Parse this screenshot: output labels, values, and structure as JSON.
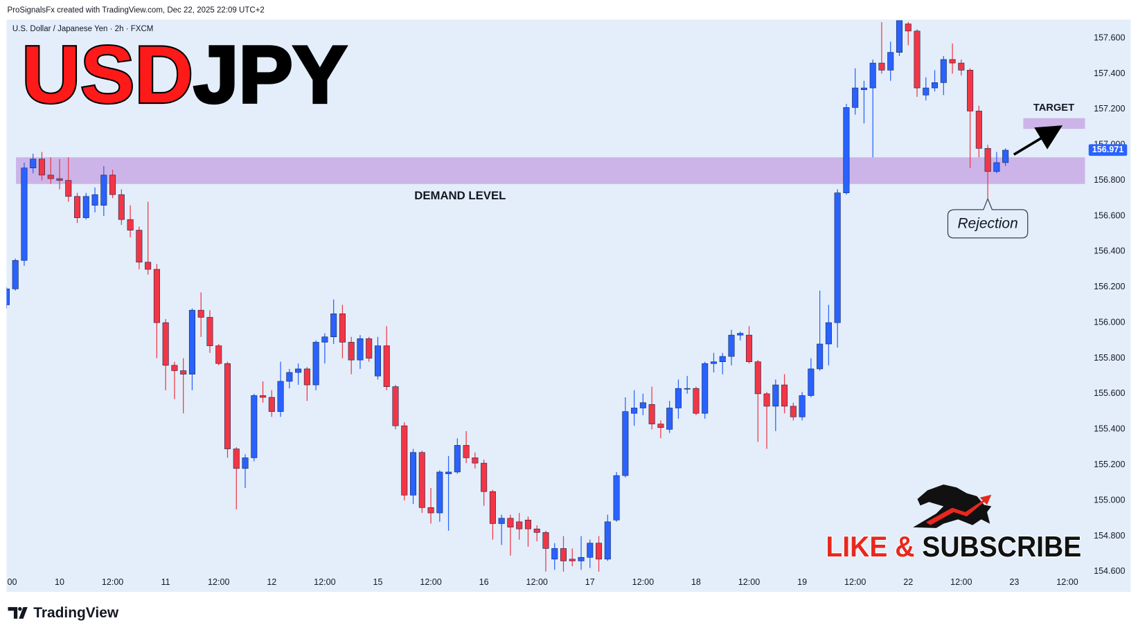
{
  "chart_data": {
    "type": "candlestick",
    "credit": "ProSignalsFx created with TradingView.com, Dec 22, 2025 22:09 UTC+2",
    "subtitle": "U.S. Dollar / Japanese Yen · 2h · FXCM",
    "title_parts": [
      "USD",
      "JPY"
    ],
    "up_color": "#2962ff",
    "down_color": "#f23645",
    "zone_color": "#c8a9e4",
    "grid": false,
    "xlim": [
      -6,
      116
    ],
    "ylim": [
      154.49,
      157.7
    ],
    "xticks": [
      {
        "value": -6,
        "label": "00"
      },
      {
        "value": 0,
        "label": "10"
      },
      {
        "value": 6,
        "label": "12:00"
      },
      {
        "value": 12,
        "label": "11"
      },
      {
        "value": 18,
        "label": "12:00"
      },
      {
        "value": 24,
        "label": "12"
      },
      {
        "value": 30,
        "label": "12:00"
      },
      {
        "value": 36,
        "label": "15"
      },
      {
        "value": 42,
        "label": "12:00"
      },
      {
        "value": 48,
        "label": "16"
      },
      {
        "value": 54,
        "label": "12:00"
      },
      {
        "value": 60,
        "label": "17"
      },
      {
        "value": 66,
        "label": "12:00"
      },
      {
        "value": 72,
        "label": "18"
      },
      {
        "value": 78,
        "label": "12:00"
      },
      {
        "value": 84,
        "label": "19"
      },
      {
        "value": 90,
        "label": "12:00"
      },
      {
        "value": 96,
        "label": "22"
      },
      {
        "value": 102,
        "label": "12:00"
      },
      {
        "value": 108,
        "label": "23"
      },
      {
        "value": 114,
        "label": "12:00"
      }
    ],
    "yticks": [
      {
        "value": 154.6,
        "label": "154.600"
      },
      {
        "value": 154.8,
        "label": "154.800"
      },
      {
        "value": 155.0,
        "label": "155.000"
      },
      {
        "value": 155.2,
        "label": "155.200"
      },
      {
        "value": 155.4,
        "label": "155.400"
      },
      {
        "value": 155.6,
        "label": "155.600"
      },
      {
        "value": 155.8,
        "label": "155.800"
      },
      {
        "value": 156.0,
        "label": "156.000"
      },
      {
        "value": 156.2,
        "label": "156.200"
      },
      {
        "value": 156.4,
        "label": "156.400"
      },
      {
        "value": 156.6,
        "label": "156.600"
      },
      {
        "value": 156.8,
        "label": "156.800"
      },
      {
        "value": 157.0,
        "label": "157.000"
      },
      {
        "value": 157.2,
        "label": "157.200"
      },
      {
        "value": 157.4,
        "label": "157.400"
      },
      {
        "value": 157.6,
        "label": "157.600"
      }
    ],
    "x": [
      -6,
      -5,
      -4,
      -3,
      -2,
      -1,
      0,
      1,
      2,
      3,
      4,
      5,
      6,
      7,
      8,
      9,
      10,
      11,
      12,
      13,
      14,
      15,
      16,
      17,
      18,
      19,
      20,
      21,
      22,
      23,
      24,
      25,
      26,
      27,
      28,
      29,
      30,
      31,
      32,
      33,
      34,
      35,
      36,
      37,
      38,
      39,
      40,
      41,
      42,
      43,
      44,
      45,
      46,
      47,
      48,
      49,
      50,
      51,
      52,
      53,
      54,
      55,
      56,
      57,
      58,
      59,
      60,
      61,
      62,
      63,
      64,
      65,
      66,
      67,
      68,
      69,
      70,
      71,
      72,
      73,
      74,
      75,
      76,
      77,
      78,
      79,
      80,
      81,
      82,
      83,
      84,
      85,
      86,
      87,
      88,
      89,
      90,
      91,
      92,
      93,
      94,
      95,
      96,
      97,
      98,
      99,
      100,
      101,
      102,
      103,
      104,
      105,
      106,
      107
    ],
    "open": [
      156.1,
      156.19,
      156.35,
      156.87,
      156.92,
      156.83,
      156.81,
      156.8,
      156.71,
      156.59,
      156.66,
      156.66,
      156.83,
      156.72,
      156.58,
      156.52,
      156.34,
      156.3,
      156.0,
      155.76,
      155.73,
      155.71,
      156.07,
      156.03,
      155.87,
      155.77,
      155.29,
      155.18,
      155.24,
      155.59,
      155.58,
      155.5,
      155.67,
      155.72,
      155.74,
      155.65,
      155.89,
      155.92,
      156.05,
      155.89,
      155.79,
      155.91,
      155.7,
      155.87,
      155.64,
      155.42,
      155.03,
      155.27,
      154.96,
      154.93,
      155.15,
      155.16,
      155.31,
      155.24,
      155.21,
      155.05,
      154.87,
      154.9,
      154.88,
      154.89,
      154.84,
      154.82,
      154.67,
      154.73,
      154.67,
      154.66,
      154.68,
      154.76,
      154.67,
      154.89,
      155.14,
      155.49,
      155.52,
      155.54,
      155.43,
      155.4,
      155.52,
      155.63,
      155.63,
      155.49,
      155.77,
      155.78,
      155.81,
      155.93,
      155.93,
      155.78,
      155.6,
      155.53,
      155.65,
      155.53,
      155.47,
      155.59,
      155.74,
      155.88,
      156.0,
      156.73,
      157.21,
      157.31,
      157.32,
      157.46,
      157.42,
      157.52,
      157.68,
      157.64,
      157.28,
      157.32,
      157.35,
      157.48,
      157.46,
      157.42,
      157.19,
      156.98,
      156.85,
      156.9
    ],
    "high": [
      156.2,
      156.36,
      156.9,
      156.95,
      156.96,
      156.93,
      156.92,
      156.93,
      156.73,
      156.73,
      156.76,
      156.88,
      156.86,
      156.75,
      156.66,
      156.54,
      156.68,
      156.33,
      156.02,
      155.78,
      155.8,
      156.08,
      156.17,
      156.07,
      155.88,
      155.78,
      155.3,
      155.26,
      155.6,
      155.67,
      155.62,
      155.78,
      155.74,
      155.77,
      155.75,
      155.9,
      155.94,
      156.13,
      156.1,
      155.92,
      155.93,
      155.92,
      155.92,
      155.98,
      155.65,
      155.44,
      155.29,
      155.28,
      155.07,
      155.17,
      155.25,
      155.35,
      155.39,
      155.27,
      155.23,
      155.06,
      154.92,
      154.92,
      154.93,
      154.91,
      154.86,
      154.83,
      154.76,
      154.8,
      154.73,
      154.8,
      154.78,
      154.8,
      154.92,
      155.16,
      155.58,
      155.62,
      155.6,
      155.64,
      155.45,
      155.56,
      155.68,
      155.7,
      155.64,
      155.78,
      155.83,
      155.83,
      155.96,
      155.95,
      155.98,
      155.79,
      155.61,
      155.68,
      155.71,
      155.55,
      155.61,
      155.8,
      156.18,
      156.1,
      156.75,
      157.23,
      157.43,
      157.36,
      157.48,
      157.69,
      157.58,
      157.71,
      157.69,
      157.65,
      157.38,
      157.42,
      157.5,
      157.57,
      157.48,
      157.43,
      157.22,
      157.0,
      156.96,
      156.98
    ],
    "low": [
      156.08,
      156.18,
      156.32,
      156.84,
      156.8,
      156.78,
      156.75,
      156.68,
      156.56,
      156.58,
      156.62,
      156.6,
      156.7,
      156.55,
      156.48,
      156.3,
      156.27,
      155.8,
      155.62,
      155.57,
      155.49,
      155.62,
      155.92,
      155.83,
      155.76,
      155.24,
      154.95,
      155.07,
      155.22,
      155.55,
      155.47,
      155.47,
      155.63,
      155.65,
      155.56,
      155.62,
      155.77,
      155.88,
      155.8,
      155.71,
      155.74,
      155.78,
      155.68,
      155.62,
      155.4,
      155.0,
      154.98,
      154.93,
      154.87,
      154.88,
      154.83,
      155.15,
      155.21,
      155.18,
      154.97,
      154.78,
      154.75,
      154.69,
      154.78,
      154.74,
      154.77,
      154.6,
      154.61,
      154.6,
      154.63,
      154.61,
      154.62,
      154.6,
      154.66,
      154.88,
      155.13,
      155.42,
      155.48,
      155.4,
      155.35,
      155.38,
      155.46,
      155.6,
      155.48,
      155.46,
      155.72,
      155.71,
      155.76,
      155.9,
      155.77,
      155.33,
      155.29,
      155.39,
      155.49,
      155.45,
      155.45,
      155.58,
      155.73,
      155.76,
      155.86,
      156.72,
      157.17,
      157.12,
      156.93,
      157.4,
      157.36,
      157.5,
      157.56,
      157.27,
      157.25,
      157.3,
      157.28,
      157.4,
      157.39,
      156.87,
      156.93,
      156.7,
      156.84,
      156.88
    ],
    "close": [
      156.19,
      156.35,
      156.87,
      156.92,
      156.83,
      156.81,
      156.8,
      156.71,
      156.59,
      156.71,
      156.72,
      156.83,
      156.72,
      156.58,
      156.52,
      156.34,
      156.3,
      156.0,
      155.76,
      155.73,
      155.71,
      156.07,
      156.03,
      155.87,
      155.77,
      155.29,
      155.18,
      155.24,
      155.59,
      155.58,
      155.5,
      155.67,
      155.72,
      155.74,
      155.65,
      155.89,
      155.92,
      156.05,
      155.89,
      155.79,
      155.91,
      155.8,
      155.87,
      155.64,
      155.42,
      155.03,
      155.27,
      154.96,
      154.93,
      155.16,
      155.16,
      155.31,
      155.24,
      155.21,
      155.05,
      154.87,
      154.9,
      154.85,
      154.84,
      154.84,
      154.82,
      154.73,
      154.73,
      154.66,
      154.66,
      154.68,
      154.76,
      154.67,
      154.88,
      155.14,
      155.5,
      155.52,
      155.55,
      155.43,
      155.41,
      155.52,
      155.63,
      155.63,
      155.49,
      155.77,
      155.78,
      155.81,
      155.93,
      155.94,
      155.78,
      155.6,
      155.53,
      155.65,
      155.53,
      155.47,
      155.59,
      155.74,
      155.88,
      156.0,
      156.73,
      157.21,
      157.32,
      157.32,
      157.46,
      157.42,
      157.52,
      157.7,
      157.64,
      157.32,
      157.32,
      157.35,
      157.48,
      157.46,
      157.42,
      157.19,
      156.98,
      156.85,
      156.9,
      156.97
    ],
    "last_price": 156.971,
    "zones": [
      {
        "label": "DEMAND LEVEL",
        "range": [
          156.78,
          156.93
        ]
      },
      {
        "label": "TARGET",
        "range": [
          157.09,
          157.15
        ]
      }
    ],
    "rejection_label": "Rejection",
    "promo": [
      "LIKE &",
      "SUBSCRIBE"
    ],
    "footer": "TradingView"
  }
}
